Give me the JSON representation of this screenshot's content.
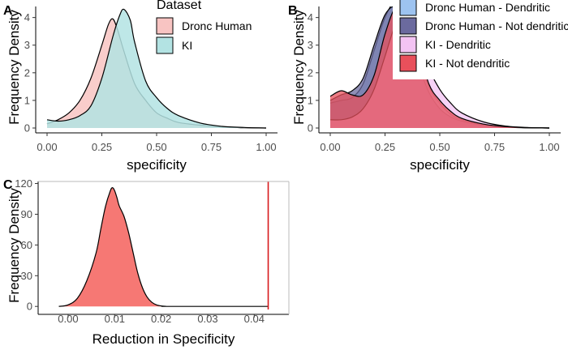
{
  "panel_labels": [
    "A",
    "B",
    "C"
  ],
  "chart_data": [
    {
      "panel": "A",
      "type": "area",
      "xlabel": "specificity",
      "ylabel": "Frequency Density",
      "xlim": [
        0,
        1
      ],
      "ylim": [
        0,
        4.4
      ],
      "xticks": [
        "0.00",
        "0.25",
        "0.50",
        "0.75",
        "1.00"
      ],
      "yticks": [
        "0",
        "1",
        "2",
        "3",
        "4"
      ],
      "legend_title": "Dataset",
      "legend_position": "top-right",
      "series": [
        {
          "name": "Dronc Human",
          "color": "#f8c4c2",
          "x": [
            0,
            0.05,
            0.1,
            0.15,
            0.2,
            0.25,
            0.28,
            0.3,
            0.32,
            0.35,
            0.4,
            0.45,
            0.5,
            0.55,
            0.6,
            0.7,
            0.8,
            0.9,
            1.0
          ],
          "y": [
            0.15,
            0.3,
            0.55,
            1.0,
            1.8,
            3.0,
            3.75,
            3.95,
            3.6,
            2.8,
            1.6,
            1.0,
            0.55,
            0.35,
            0.2,
            0.1,
            0.04,
            0.01,
            0
          ]
        },
        {
          "name": "KI",
          "color": "#b3e3e3",
          "x": [
            0,
            0.05,
            0.1,
            0.15,
            0.2,
            0.25,
            0.3,
            0.33,
            0.35,
            0.38,
            0.4,
            0.45,
            0.5,
            0.55,
            0.6,
            0.7,
            0.8,
            0.9,
            1.0
          ],
          "y": [
            0.3,
            0.25,
            0.3,
            0.45,
            0.8,
            1.8,
            3.3,
            4.05,
            4.3,
            3.9,
            3.1,
            1.7,
            1.1,
            0.7,
            0.45,
            0.18,
            0.06,
            0.02,
            0
          ]
        }
      ]
    },
    {
      "panel": "B",
      "type": "area",
      "xlabel": "specificity",
      "ylabel": "Frequency Density",
      "xlim": [
        0,
        1
      ],
      "ylim": [
        0,
        4.4
      ],
      "xticks": [
        "0.00",
        "0.25",
        "0.50",
        "0.75",
        "1.00"
      ],
      "yticks": [
        "0",
        "1",
        "2",
        "3",
        "4"
      ],
      "legend_position": "top-right",
      "series": [
        {
          "name": "Dronc Human - Dendritic",
          "color": "#9dc3f0",
          "x": [
            0,
            0.05,
            0.1,
            0.15,
            0.2,
            0.25,
            0.3,
            0.35,
            0.4,
            0.45,
            0.5,
            0.55,
            0.6,
            0.7,
            0.8,
            0.9,
            1.0
          ],
          "y": [
            0.9,
            1.0,
            1.1,
            1.6,
            2.8,
            4.0,
            4.6,
            4.2,
            2.6,
            1.5,
            0.9,
            0.5,
            0.3,
            0.12,
            0.04,
            0.01,
            0
          ]
        },
        {
          "name": "Dronc Human - Not dendritic",
          "color": "#6b6a9e",
          "x": [
            0,
            0.05,
            0.1,
            0.15,
            0.2,
            0.25,
            0.3,
            0.35,
            0.4,
            0.45,
            0.5,
            0.55,
            0.6,
            0.7,
            0.8,
            0.9,
            1.0
          ],
          "y": [
            1.0,
            1.2,
            1.35,
            1.8,
            3.0,
            4.1,
            4.4,
            3.9,
            2.4,
            1.3,
            0.7,
            0.4,
            0.25,
            0.1,
            0.03,
            0.01,
            0
          ]
        },
        {
          "name": "KI - Dendritic",
          "color": "#f3c3f3",
          "x": [
            0,
            0.05,
            0.1,
            0.15,
            0.2,
            0.25,
            0.3,
            0.35,
            0.4,
            0.45,
            0.5,
            0.55,
            0.6,
            0.7,
            0.8,
            0.9,
            1.0
          ],
          "y": [
            0.3,
            0.3,
            0.4,
            0.7,
            1.4,
            2.6,
            3.8,
            4.3,
            3.6,
            2.2,
            1.4,
            0.9,
            0.55,
            0.22,
            0.07,
            0.02,
            0
          ]
        },
        {
          "name": "KI - Not dendritic",
          "color": "#e8505b",
          "x": [
            0,
            0.05,
            0.1,
            0.15,
            0.2,
            0.25,
            0.3,
            0.35,
            0.4,
            0.45,
            0.5,
            0.55,
            0.6,
            0.7,
            0.8,
            0.9,
            1.0
          ],
          "y": [
            1.15,
            1.35,
            1.2,
            1.2,
            1.9,
            3.4,
            4.4,
            4.3,
            3.0,
            1.6,
            1.0,
            0.6,
            0.35,
            0.14,
            0.05,
            0.01,
            0
          ]
        }
      ]
    },
    {
      "panel": "C",
      "type": "area",
      "xlabel": "Reduction in Specificity",
      "ylabel": "Frequency Density",
      "xlim": [
        -0.004,
        0.045
      ],
      "ylim": [
        -3,
        122
      ],
      "xticks": [
        "0.00",
        "0.01",
        "0.02",
        "0.03",
        "0.04"
      ],
      "yticks": [
        "0",
        "30",
        "60",
        "90",
        "120"
      ],
      "series": [
        {
          "color": "#f4605c",
          "x": [
            -0.002,
            0.0,
            0.002,
            0.004,
            0.006,
            0.007,
            0.008,
            0.009,
            0.0095,
            0.01,
            0.0105,
            0.011,
            0.012,
            0.013,
            0.014,
            0.015,
            0.016,
            0.017,
            0.018,
            0.019,
            0.02,
            0.021,
            0.022,
            0.043
          ],
          "y": [
            0,
            1.5,
            8,
            25,
            52,
            75,
            97,
            112,
            116,
            113,
            106,
            98,
            88,
            72,
            52,
            32,
            18,
            9,
            4,
            1.5,
            0.5,
            0.1,
            0,
            0
          ]
        }
      ],
      "vline": {
        "x": 0.043,
        "color": "#d7191c"
      }
    }
  ]
}
